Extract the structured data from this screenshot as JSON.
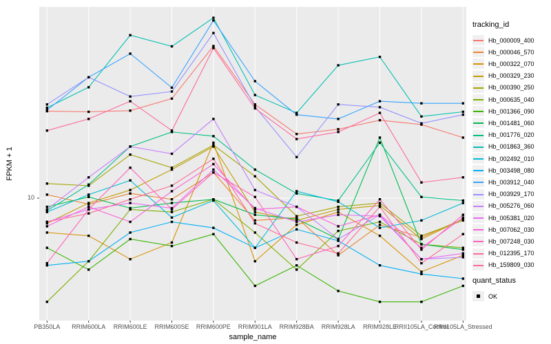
{
  "figure": {
    "bg_color": "#FFFFFF",
    "panel_bg": "#EBEBEB",
    "grid_color": "#FFFFFF",
    "axis_text_color": "#4D4D4D",
    "tick_mark_color": "#333333",
    "marker_color": "#000000"
  },
  "axes": {
    "x_title": "sample_name",
    "y_title": "FPKM + 1",
    "y_tick_labels": [
      "10"
    ]
  },
  "legend": {
    "tracking_title": "tracking_id",
    "quant_title": "quant_status",
    "quant_items": [
      {
        "label": "OK",
        "key": "black-square"
      }
    ]
  },
  "chart_data": {
    "type": "line",
    "y_scale": "log10",
    "y_breaks": [
      10
    ],
    "grid": "major-on",
    "legend_position": "right",
    "marker": "black-square",
    "xlabel": "sample_name",
    "ylabel": "FPKM + 1",
    "ylim_approx": [
      3.6,
      50
    ],
    "categories": [
      "PB350LA",
      "RRIM600LA",
      "RRIM600LE",
      "RRIM600SE",
      "RRIM600PE",
      "RRIM901LA",
      "RRIM928BA",
      "RRIM928LA",
      "RRIM928LE",
      "RRII105LA_Control",
      "RRII105LA_Stressed"
    ],
    "series": [
      {
        "name": "Hb_000009_400",
        "color": "#F8766D",
        "values": [
          20.7,
          20.6,
          20.8,
          23.0,
          35.7,
          21.9,
          17.1,
          17.8,
          19.2,
          18.5,
          16.6
        ]
      },
      {
        "name": "Hb_000046_570",
        "color": "#EA8331",
        "values": [
          10.3,
          9.5,
          10.4,
          9.9,
          12.4,
          8.3,
          8.5,
          6.2,
          8.0,
          7.2,
          8.4
        ]
      },
      {
        "name": "Hb_000322_070",
        "color": "#D89000",
        "values": [
          7.5,
          7.3,
          6.0,
          6.9,
          15.9,
          5.9,
          8.0,
          8.9,
          7.3,
          5.4,
          6.2
        ]
      },
      {
        "name": "Hb_000329_230",
        "color": "#C09B00",
        "values": [
          8.1,
          9.6,
          10.7,
          12.7,
          15.4,
          8.9,
          8.3,
          9.1,
          9.4,
          7.1,
          8.4
        ]
      },
      {
        "name": "Hb_000390_250",
        "color": "#A3A500",
        "values": [
          11.3,
          11.1,
          14.4,
          12.9,
          15.6,
          12.0,
          8.6,
          9.3,
          9.6,
          7.3,
          8.3
        ]
      },
      {
        "name": "Hb_000635_040",
        "color": "#7CAE00",
        "values": [
          4.2,
          5.9,
          9.1,
          8.9,
          9.9,
          7.5,
          5.5,
          7.6,
          8.2,
          6.8,
          6.6
        ]
      },
      {
        "name": "Hb_001366_090",
        "color": "#39B600",
        "values": [
          6.6,
          5.5,
          7.1,
          6.7,
          7.4,
          4.8,
          5.7,
          4.6,
          4.2,
          4.2,
          4.8
        ]
      },
      {
        "name": "Hb_001481_060",
        "color": "#00BB4E",
        "values": [
          9.3,
          10.1,
          9.2,
          9.6,
          9.9,
          8.7,
          8.4,
          7.1,
          16.6,
          6.8,
          6.5
        ]
      },
      {
        "name": "Hb_001776_020",
        "color": "#00C087",
        "values": [
          9.0,
          11.2,
          15.4,
          17.4,
          16.8,
          12.7,
          10.4,
          9.8,
          15.9,
          10.1,
          9.8
        ]
      },
      {
        "name": "Hb_001863_360",
        "color": "#00C0B2",
        "values": [
          21.3,
          25.3,
          39.1,
          35.6,
          45.2,
          23.7,
          20.4,
          30.4,
          32.6,
          19.8,
          20.6
        ]
      },
      {
        "name": "Hb_002492_010",
        "color": "#00BCD8",
        "values": [
          8.9,
          10.3,
          11.6,
          8.5,
          9.8,
          6.6,
          10.6,
          9.7,
          7.8,
          8.3,
          9.6
        ]
      },
      {
        "name": "Hb_003498_080",
        "color": "#00B0F6",
        "values": [
          5.7,
          5.9,
          7.5,
          8.2,
          7.8,
          6.6,
          7.7,
          7.0,
          5.7,
          5.3,
          5.1
        ]
      },
      {
        "name": "Hb_003912_040",
        "color": "#35A2FF",
        "values": [
          20.9,
          27.5,
          33.5,
          25.2,
          44.2,
          26.6,
          20.1,
          19.4,
          22.5,
          22.1,
          22.1
        ]
      },
      {
        "name": "Hb_003929_170",
        "color": "#9590FF",
        "values": [
          21.9,
          27.5,
          23.4,
          24.4,
          39.8,
          21.5,
          14.1,
          21.9,
          21.4,
          18.7,
          20.1
        ]
      },
      {
        "name": "Hb_005276_060",
        "color": "#C77CFF",
        "values": [
          9.1,
          11.9,
          15.4,
          14.5,
          19.4,
          10.7,
          9.3,
          7.1,
          8.7,
          6.0,
          6.1
        ]
      },
      {
        "name": "Hb_005381_020",
        "color": "#E76BF3",
        "values": [
          8.2,
          9.1,
          9.6,
          9.2,
          12.7,
          9.2,
          8.2,
          8.7,
          8.6,
          6.0,
          6.3
        ]
      },
      {
        "name": "Hb_007062_030",
        "color": "#FA62DB",
        "values": [
          7.9,
          9.3,
          8.2,
          10.6,
          13.3,
          9.1,
          9.3,
          7.9,
          8.7,
          6.6,
          8.5
        ]
      },
      {
        "name": "Hb_007248_030",
        "color": "#FF62BC",
        "values": [
          5.8,
          9.1,
          12.9,
          9.1,
          12.4,
          10.1,
          6.0,
          6.7,
          9.9,
          6.5,
          8.7
        ]
      },
      {
        "name": "Hb_012395_170",
        "color": "#FF6A98",
        "values": [
          8.2,
          8.8,
          9.9,
          11.1,
          13.9,
          8.1,
          6.9,
          6.3,
          9.3,
          5.8,
          7.4
        ]
      },
      {
        "name": "Hb_159809_030",
        "color": "#FF689D",
        "values": [
          17.6,
          19.4,
          22.5,
          17.6,
          35.1,
          21.2,
          16.4,
          17.4,
          20.4,
          11.4,
          11.9
        ]
      }
    ]
  }
}
